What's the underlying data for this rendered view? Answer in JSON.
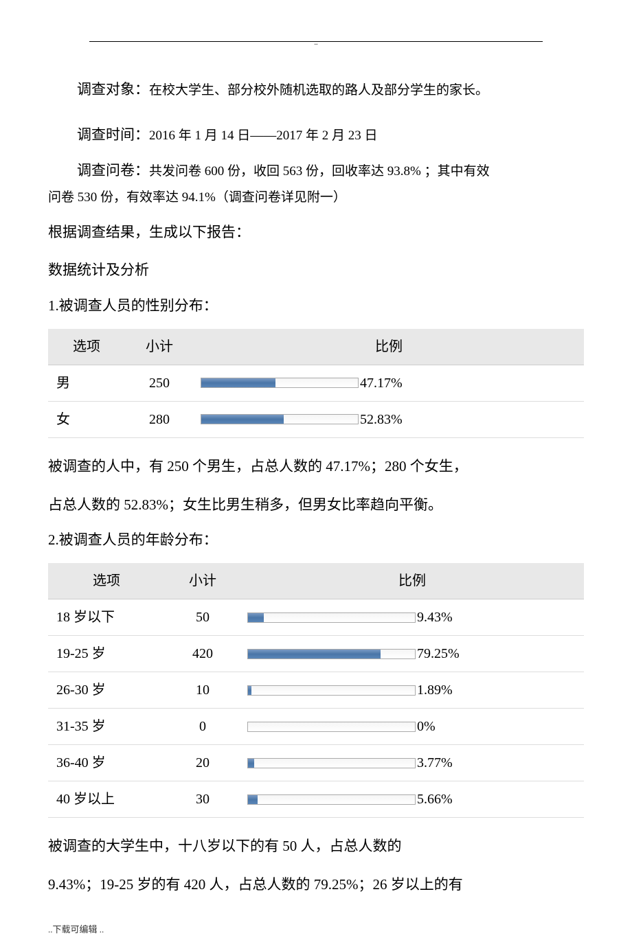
{
  "header_dots": "..",
  "survey_target_label": "调查对象：",
  "survey_target_text": "在校大学生、部分校外随机选取的路人及部分学生的家长。",
  "survey_time_label": "调查时间：",
  "survey_time_text": "2016 年 1 月 14 日——2017 年 2 月 23 日",
  "survey_questionnaire_label": "调查问卷：",
  "survey_questionnaire_text1": "共发问卷 600 份，收回 563 份，回收率达 93.8% ；其中有效",
  "survey_questionnaire_text2": "问卷 530 份，有效率达 94.1%（调查问卷详见附一）",
  "intro_line": "根据调查结果，生成以下报告：",
  "stats_heading": "数据统计及分析",
  "table_headers": {
    "option": "选项",
    "count": "小计",
    "ratio": "比例"
  },
  "q1": {
    "title": "1.被调查人员的性别分布：",
    "col_widths": {
      "option": 112,
      "count": 100,
      "ratio_track": 230
    },
    "rows": [
      {
        "option": "男",
        "count": "250",
        "percent": "47.17%",
        "fill_pct": 47.17
      },
      {
        "option": "女",
        "count": "280",
        "percent": "52.83%",
        "fill_pct": 52.83
      }
    ],
    "analysis1": "被调查的人中，有 250 个男生，占总人数的 47.17%；280 个女生，",
    "analysis2": "占总人数的 52.83%；女生比男生稍多，但男女比率趋向平衡。"
  },
  "q2": {
    "title": "2.被调查人员的年龄分布：",
    "col_widths": {
      "option": 170,
      "count": 110,
      "ratio_track": 245
    },
    "rows": [
      {
        "option": "18 岁以下",
        "count": "50",
        "percent": "9.43%",
        "fill_pct": 9.43
      },
      {
        "option": "19-25 岁",
        "count": "420",
        "percent": "79.25%",
        "fill_pct": 79.25
      },
      {
        "option": "26-30 岁",
        "count": "10",
        "percent": "1.89%",
        "fill_pct": 1.89
      },
      {
        "option": "31-35 岁",
        "count": "0",
        "percent": "0%",
        "fill_pct": 0
      },
      {
        "option": "36-40 岁",
        "count": "20",
        "percent": "3.77%",
        "fill_pct": 3.77
      },
      {
        "option": "40 岁以上",
        "count": "30",
        "percent": "5.66%",
        "fill_pct": 5.66
      }
    ],
    "analysis1": "被调查的大学生中，十八岁以下的有 50 人，占总人数的",
    "analysis2": "9.43%；19-25 岁的有 420 人，占总人数的 79.25%；26 岁以上的有"
  },
  "footer_text": "..下载可编辑  ..",
  "colors": {
    "bar_fill_top": "#7a9bc4",
    "bar_fill_mid": "#4a76a8",
    "bar_fill_bot": "#5a86b8",
    "bar_border": "#aaaaaa",
    "header_bg": "#e8e8e8",
    "text": "#000000"
  }
}
